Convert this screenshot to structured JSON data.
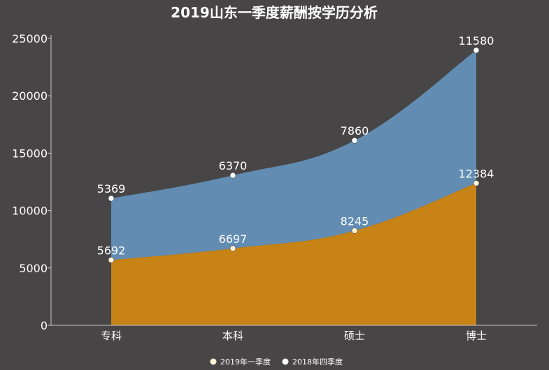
{
  "chart_data": {
    "type": "area",
    "stacked": true,
    "title": "2019山东一季度薪酬按学历分析",
    "categories": [
      "专科",
      "本科",
      "硕士",
      "博士"
    ],
    "ylim": [
      0,
      25000
    ],
    "yticks": [
      0,
      5000,
      10000,
      15000,
      20000,
      25000
    ],
    "series": [
      {
        "name": "2019年一季度",
        "values": [
          5692,
          6697,
          8245,
          12384
        ],
        "color": "#c78316",
        "marker": "#fff3d6"
      },
      {
        "name": "2018年四季度",
        "values": [
          5369,
          6370,
          7860,
          11580
        ],
        "color": "#628cb2",
        "marker": "#ffffff"
      }
    ],
    "legend_position": "bottom-center",
    "grid": false
  }
}
